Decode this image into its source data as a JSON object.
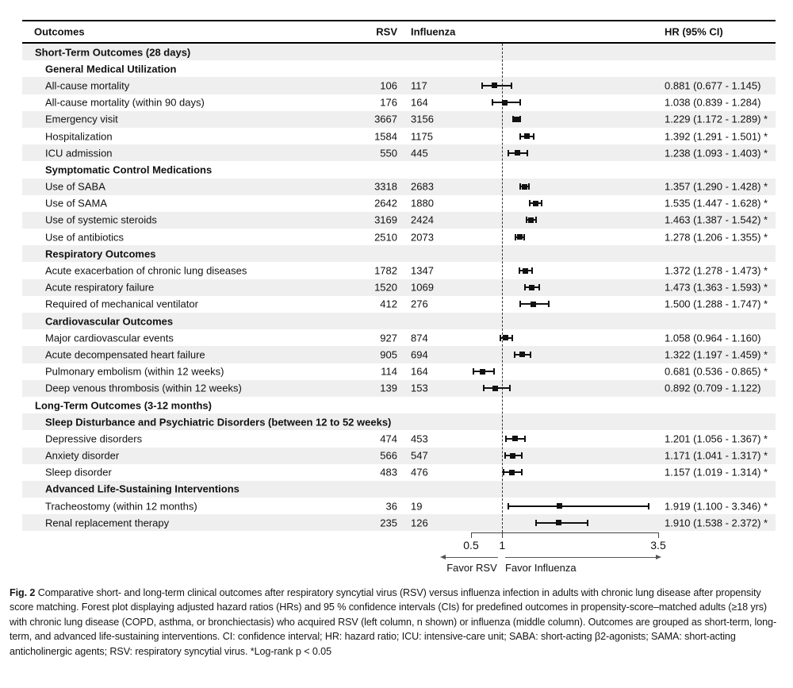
{
  "chart_data": {
    "type": "forest",
    "title": "",
    "columns": {
      "outcomes": "Outcomes",
      "rsv": "RSV",
      "influenza": "Influenza",
      "hr": "HR (95% CI)"
    },
    "x_axis": {
      "scale": "linear",
      "min": 0.5,
      "max": 3.5,
      "ticks": [
        0.5,
        1,
        3.5
      ],
      "reference_line": 1,
      "left_label": "Favor RSV",
      "right_label": "Favor Influenza"
    },
    "rows": [
      {
        "type": "section",
        "label": "Short-Term Outcomes (28 days)"
      },
      {
        "type": "subsection",
        "label": "General Medical Utilization"
      },
      {
        "type": "item",
        "label": "All-cause mortality",
        "rsv": "106",
        "influenza": "117",
        "hr": 0.881,
        "ci_low": 0.677,
        "ci_high": 1.145,
        "hr_text": "0.881 (0.677 - 1.145)",
        "significant": false
      },
      {
        "type": "item",
        "label": "All-cause mortality (within 90 days)",
        "rsv": "176",
        "influenza": "164",
        "hr": 1.038,
        "ci_low": 0.839,
        "ci_high": 1.284,
        "hr_text": "1.038 (0.839 - 1.284)",
        "significant": false
      },
      {
        "type": "item",
        "label": "Emergency visit",
        "rsv": "3667",
        "influenza": "3156",
        "hr": 1.229,
        "ci_low": 1.172,
        "ci_high": 1.289,
        "hr_text": "1.229 (1.172 - 1.289) *",
        "significant": true
      },
      {
        "type": "item",
        "label": "Hospitalization",
        "rsv": "1584",
        "influenza": "1175",
        "hr": 1.392,
        "ci_low": 1.291,
        "ci_high": 1.501,
        "hr_text": "1.392 (1.291 - 1.501) *",
        "significant": true
      },
      {
        "type": "item",
        "label": "ICU admission",
        "rsv": "550",
        "influenza": "445",
        "hr": 1.238,
        "ci_low": 1.093,
        "ci_high": 1.403,
        "hr_text": "1.238 (1.093 - 1.403) *",
        "significant": true
      },
      {
        "type": "subsection",
        "label": "Symptomatic Control Medications"
      },
      {
        "type": "item",
        "label": "Use of SABA",
        "rsv": "3318",
        "influenza": "2683",
        "hr": 1.357,
        "ci_low": 1.29,
        "ci_high": 1.428,
        "hr_text": "1.357 (1.290 - 1.428) *",
        "significant": true
      },
      {
        "type": "item",
        "label": "Use of SAMA",
        "rsv": "2642",
        "influenza": "1880",
        "hr": 1.535,
        "ci_low": 1.447,
        "ci_high": 1.628,
        "hr_text": "1.535 (1.447 - 1.628) *",
        "significant": true
      },
      {
        "type": "item",
        "label": "Use of systemic steroids",
        "rsv": "3169",
        "influenza": "2424",
        "hr": 1.463,
        "ci_low": 1.387,
        "ci_high": 1.542,
        "hr_text": "1.463 (1.387 - 1.542) *",
        "significant": true
      },
      {
        "type": "item",
        "label": "Use of antibiotics",
        "rsv": "2510",
        "influenza": "2073",
        "hr": 1.278,
        "ci_low": 1.206,
        "ci_high": 1.355,
        "hr_text": "1.278 (1.206 - 1.355) *",
        "significant": true
      },
      {
        "type": "subsection",
        "label": "Respiratory Outcomes"
      },
      {
        "type": "item",
        "label": "Acute exacerbation of chronic lung diseases",
        "rsv": "1782",
        "influenza": "1347",
        "hr": 1.372,
        "ci_low": 1.278,
        "ci_high": 1.473,
        "hr_text": "1.372 (1.278 - 1.473) *",
        "significant": true
      },
      {
        "type": "item",
        "label": "Acute respiratory failure",
        "rsv": "1520",
        "influenza": "1069",
        "hr": 1.473,
        "ci_low": 1.363,
        "ci_high": 1.593,
        "hr_text": "1.473 (1.363 - 1.593) *",
        "significant": true
      },
      {
        "type": "item",
        "label": "Required of mechanical ventilator",
        "rsv": "412",
        "influenza": "276",
        "hr": 1.5,
        "ci_low": 1.288,
        "ci_high": 1.747,
        "hr_text": "1.500 (1.288 - 1.747) *",
        "significant": true
      },
      {
        "type": "subsection",
        "label": "Cardiovascular Outcomes"
      },
      {
        "type": "item",
        "label": "Major cardiovascular events",
        "rsv": "927",
        "influenza": "874",
        "hr": 1.058,
        "ci_low": 0.964,
        "ci_high": 1.16,
        "hr_text": "1.058 (0.964 - 1.160)",
        "significant": false
      },
      {
        "type": "item",
        "label": "Acute decompensated heart failure",
        "rsv": "905",
        "influenza": "694",
        "hr": 1.322,
        "ci_low": 1.197,
        "ci_high": 1.459,
        "hr_text": "1.322 (1.197 - 1.459) *",
        "significant": true
      },
      {
        "type": "item",
        "label": "Pulmonary embolism (within 12 weeks)",
        "rsv": "114",
        "influenza": "164",
        "hr": 0.681,
        "ci_low": 0.536,
        "ci_high": 0.865,
        "hr_text": "0.681 (0.536 - 0.865) *",
        "significant": true
      },
      {
        "type": "item",
        "label": "Deep venous thrombosis (within 12 weeks)",
        "rsv": "139",
        "influenza": "153",
        "hr": 0.892,
        "ci_low": 0.709,
        "ci_high": 1.122,
        "hr_text": "0.892 (0.709 - 1.122)",
        "significant": false
      },
      {
        "type": "section",
        "label": "Long-Term Outcomes (3-12 months)"
      },
      {
        "type": "subsection",
        "label": "Sleep Disturbance and Psychiatric Disorders (between 12 to 52 weeks)"
      },
      {
        "type": "item",
        "label": "Depressive disorders",
        "rsv": "474",
        "influenza": "453",
        "hr": 1.201,
        "ci_low": 1.056,
        "ci_high": 1.367,
        "hr_text": "1.201 (1.056 - 1.367) *",
        "significant": true
      },
      {
        "type": "item",
        "label": "Anxiety disorder",
        "rsv": "566",
        "influenza": "547",
        "hr": 1.171,
        "ci_low": 1.041,
        "ci_high": 1.317,
        "hr_text": "1.171 (1.041 - 1.317) *",
        "significant": true
      },
      {
        "type": "item",
        "label": "Sleep disorder",
        "rsv": "483",
        "influenza": "476",
        "hr": 1.157,
        "ci_low": 1.019,
        "ci_high": 1.314,
        "hr_text": "1.157 (1.019 - 1.314) *",
        "significant": true
      },
      {
        "type": "subsection",
        "label": "Advanced Life-Sustaining Interventions"
      },
      {
        "type": "item",
        "label": "Tracheostomy (within 12 months)",
        "rsv": "36",
        "influenza": "19",
        "hr": 1.919,
        "ci_low": 1.1,
        "ci_high": 3.346,
        "hr_text": "1.919 (1.100 - 3.346) *",
        "significant": true
      },
      {
        "type": "item",
        "label": "Renal replacement therapy",
        "rsv": "235",
        "influenza": "126",
        "hr": 1.91,
        "ci_low": 1.538,
        "ci_high": 2.372,
        "hr_text": "1.910 (1.538 - 2.372) *",
        "significant": true
      }
    ],
    "colors": {
      "shaded_row": "#efefef",
      "marker": "#111111",
      "text": "#111111"
    }
  },
  "caption": {
    "label": "Fig. 2",
    "text": "Comparative short- and long-term clinical outcomes after respiratory syncytial virus (RSV) versus influenza infection in adults with chronic lung disease after propensity score matching. Forest plot displaying adjusted hazard ratios (HRs) and 95 % confidence intervals (CIs) for predefined outcomes in propensity-score–matched adults (≥18 yrs) with chronic lung disease (COPD, asthma, or bronchiectasis) who acquired RSV (left column, n shown) or influenza (middle column). Outcomes are grouped as short-term, long-term, and advanced life-sustaining interventions. CI: confidence interval; HR: hazard ratio; ICU: intensive-care unit; SABA: short-acting β2-agonists; SAMA: short-acting anticholinergic agents; RSV: respiratory syncytial virus. *Log-rank p < 0.05"
  }
}
